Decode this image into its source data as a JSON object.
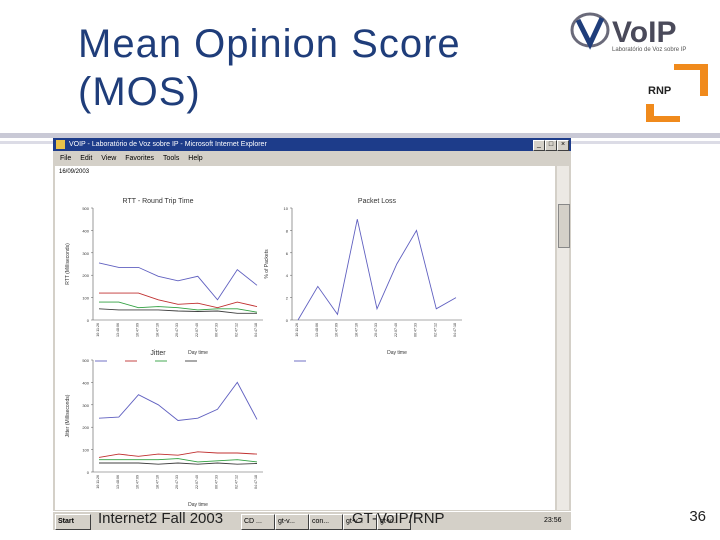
{
  "slide": {
    "title": "Mean Opinion Score (MOS)",
    "page_number": "36",
    "footer_left": "Internet2 Fall 2003",
    "footer_center": "GT-VoIP/RNP"
  },
  "logos": {
    "voip_text": "VoIP",
    "voip_subtitle": "Laboratório de Voz sobre IP",
    "rnp_text": "RNP"
  },
  "browser": {
    "window_title": "VOIP - Laboratório de Voz sobre IP - Microsoft Internet Explorer",
    "menu": [
      "File",
      "Edit",
      "View",
      "Favorites",
      "Tools",
      "Help"
    ],
    "page_date": "16/09/2003"
  },
  "taskbar": {
    "start": "Start",
    "items": [
      "CD ...",
      "gt-v...",
      "con...",
      "gt-v...",
      "gt-v..."
    ],
    "clock": "23:56"
  },
  "colors": {
    "title": "#1f3d7a",
    "ie_titlebar": "#1d3c8a",
    "series_colors": [
      "#6060c0",
      "#c03030",
      "#30a040",
      "#404040"
    ]
  },
  "chart_data": [
    {
      "type": "line",
      "title": "RTT - Round Trip Time",
      "xlabel": "Day time",
      "ylabel": "RTT (Milliseconds)",
      "ylim": [
        0,
        500
      ],
      "yticks": [
        0,
        100,
        200,
        300,
        400,
        500
      ],
      "categories": [
        "10:11:26",
        "13:48:06",
        "16:47:09",
        "18:47:16",
        "20:47:33",
        "22:07:40",
        "00:47:33",
        "02:47:12",
        "04:47:18"
      ],
      "series": [
        {
          "values": [
            255,
            235,
            235,
            195,
            175,
            195,
            90,
            225,
            155
          ]
        },
        {
          "values": [
            120,
            120,
            120,
            90,
            70,
            75,
            55,
            80,
            60
          ]
        },
        {
          "values": [
            80,
            80,
            55,
            60,
            55,
            45,
            50,
            50,
            35
          ]
        },
        {
          "values": [
            50,
            45,
            45,
            45,
            40,
            38,
            40,
            30,
            30
          ]
        }
      ]
    },
    {
      "type": "line",
      "title": "Packet Loss",
      "xlabel": "Day time",
      "ylabel": "% of Packets",
      "ylim": [
        0,
        10
      ],
      "yticks": [
        0,
        2,
        4,
        6,
        8,
        10
      ],
      "categories": [
        "10:11:26",
        "13:48:06",
        "16:47:09",
        "18:47:16",
        "20:47:33",
        "22:07:40",
        "00:47:33",
        "02:47:12",
        "04:47:18"
      ],
      "series": [
        {
          "values": [
            0,
            3,
            0.5,
            9,
            1,
            5,
            8,
            1,
            2
          ]
        }
      ]
    },
    {
      "type": "line",
      "title": "Jitter",
      "xlabel": "Day time",
      "ylabel": "Jitter (Milliseconds)",
      "ylim": [
        0,
        500
      ],
      "yticks": [
        0,
        100,
        200,
        300,
        400,
        500
      ],
      "categories": [
        "10:11:26",
        "13:48:06",
        "16:47:09",
        "18:47:16",
        "20:47:33",
        "22:07:40",
        "00:47:33",
        "02:47:12",
        "04:47:18"
      ],
      "series": [
        {
          "values": [
            240,
            245,
            345,
            300,
            230,
            240,
            280,
            400,
            235
          ]
        },
        {
          "values": [
            65,
            80,
            70,
            80,
            75,
            90,
            85,
            85,
            80
          ]
        },
        {
          "values": [
            55,
            55,
            55,
            55,
            60,
            45,
            50,
            55,
            45
          ]
        },
        {
          "values": [
            40,
            40,
            40,
            35,
            40,
            35,
            40,
            35,
            38
          ]
        }
      ]
    }
  ]
}
